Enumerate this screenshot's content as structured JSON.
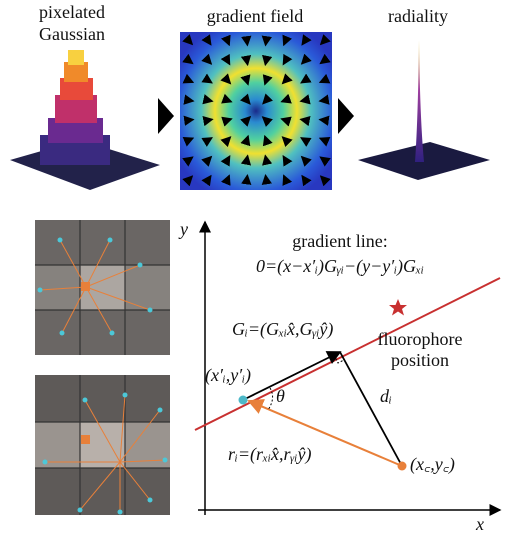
{
  "panels": {
    "top": {
      "labels": [
        "pixelated",
        "Gaussian",
        "gradient field",
        "radiality"
      ]
    },
    "geometry": {
      "y_axis": "y",
      "x_axis": "x",
      "gradient_line_title": "gradient line:",
      "gradient_line_eq": "0=(x−x′ᵢ)Gᵧᵢ−(y−y′ᵢ)Gₓᵢ",
      "gradient_vector": "Gᵢ=(Gₓᵢx̂,Gᵧᵢŷ)",
      "fluorophore": [
        "fluorophore",
        "position"
      ],
      "point_i": "(x′ᵢ,y′ᵢ)",
      "angle": "θ",
      "distance": "dᵢ",
      "r_vector": "rᵢ=(rₓᵢx̂,rᵧᵢŷ)",
      "center": "(x꜀,y꜀)"
    }
  }
}
